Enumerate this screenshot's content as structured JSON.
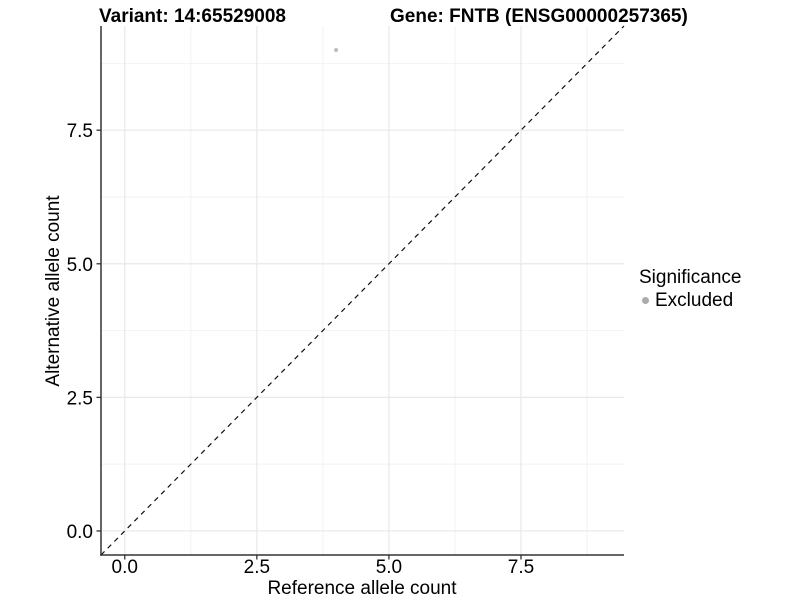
{
  "header": {
    "variant_title": "Variant: 14:65529008",
    "gene_title": "Gene: FNTB (ENSG00000257365)"
  },
  "chart_data": {
    "type": "scatter",
    "title_left": "Variant: 14:65529008",
    "title_right": "Gene: FNTB (ENSG00000257365)",
    "xlabel": "Reference allele count",
    "ylabel": "Alternative allele count",
    "xlim": [
      -0.45,
      9.45
    ],
    "ylim": [
      -0.45,
      9.45
    ],
    "x_ticks": {
      "values": [
        0,
        2.5,
        5,
        7.5
      ],
      "labels": [
        "0.0",
        "2.5",
        "5.0",
        "7.5"
      ]
    },
    "y_ticks": {
      "values": [
        0,
        2.5,
        5,
        7.5
      ],
      "labels": [
        "0.0",
        "2.5",
        "5.0",
        "7.5"
      ]
    },
    "minor_ticks": [
      1.25,
      3.75,
      6.25,
      8.75
    ],
    "grid": true,
    "reference_line": {
      "type": "identity",
      "equation": "y = x",
      "style": "dashed",
      "color": "#111111"
    },
    "series": [
      {
        "name": "Excluded",
        "color": "#bdbdbd",
        "points": [
          [
            4,
            9
          ]
        ]
      }
    ],
    "legend": {
      "title": "Significance",
      "position": "right",
      "items": [
        {
          "label": "Excluded",
          "color": "#ababab"
        }
      ]
    },
    "colors": {
      "axis_line": "#333333",
      "tick_mark": "#333333",
      "grid_major": "#e8e8e8",
      "grid_minor": "#f2f2f2",
      "point": "#bdbdbd"
    }
  }
}
